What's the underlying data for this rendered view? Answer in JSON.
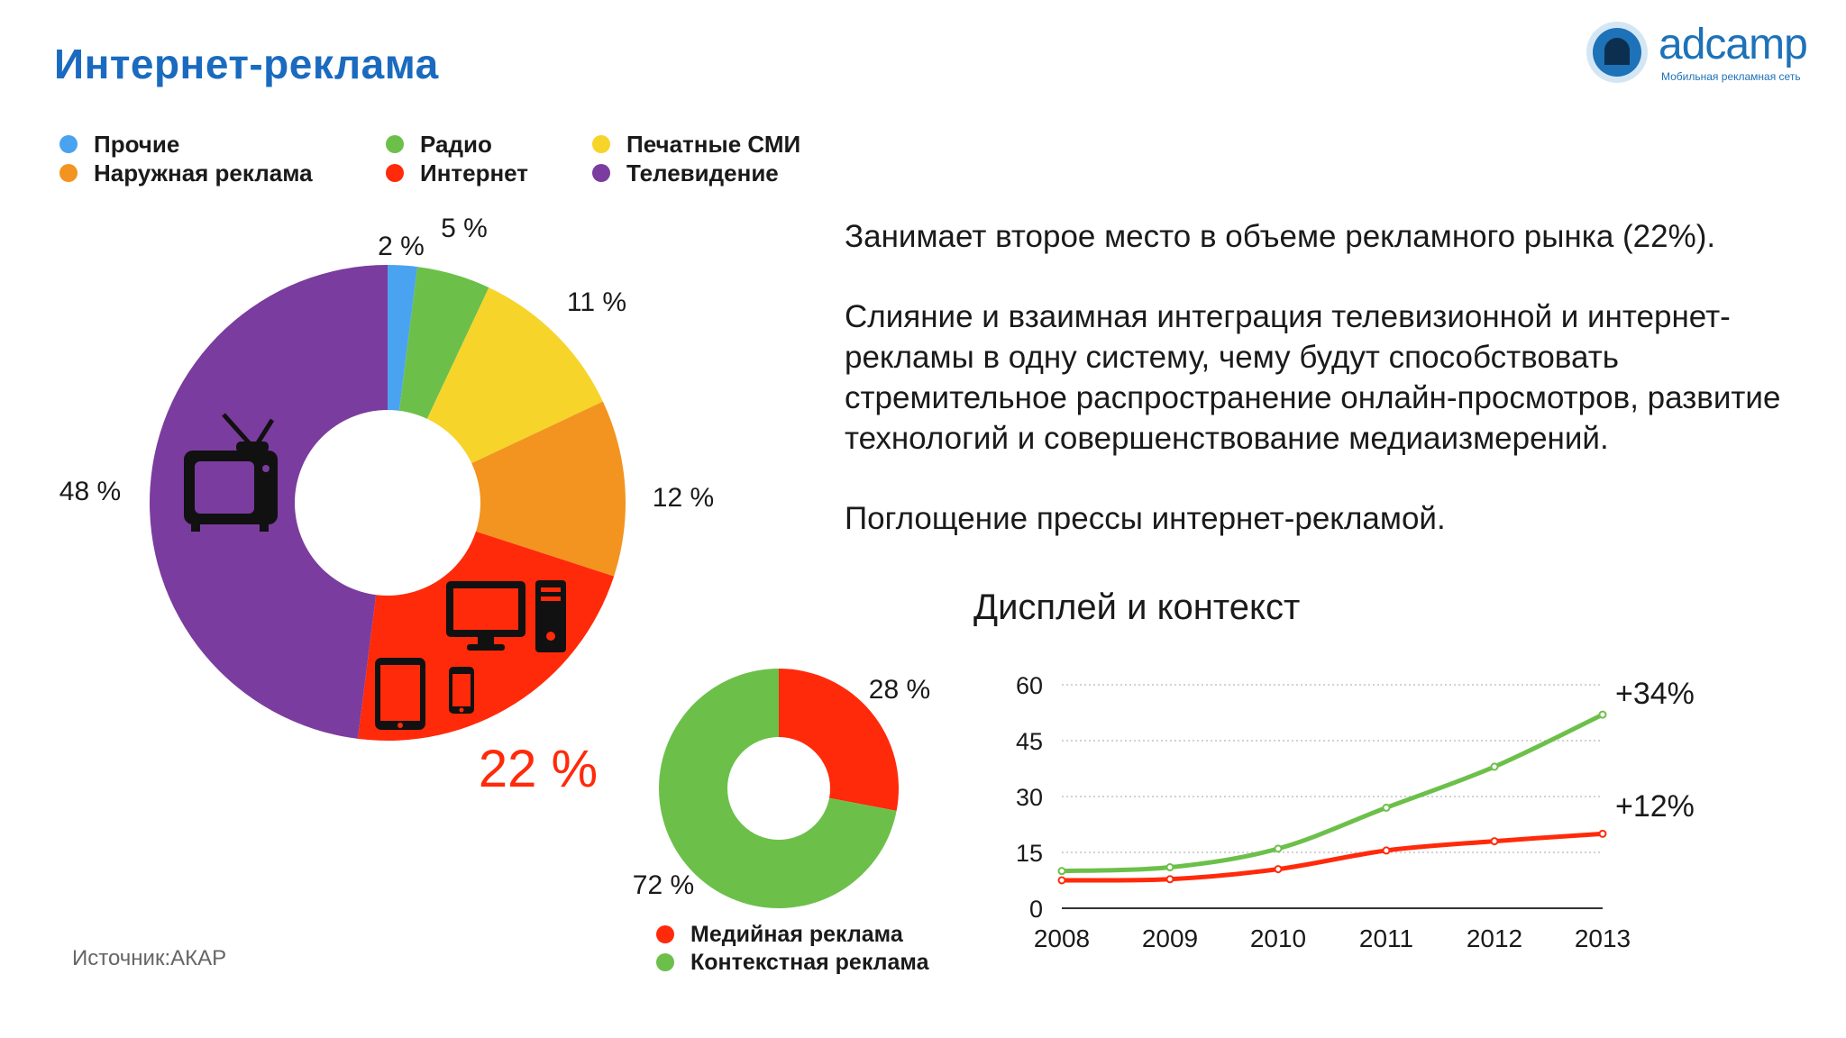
{
  "title": "Интернет-реклама",
  "logo": {
    "name": "adcamp",
    "tagline": "Мобильная рекламная сеть"
  },
  "legend": [
    {
      "label": "Прочие",
      "color": "#4aa3f0"
    },
    {
      "label": "Наружная реклама",
      "color": "#f2941f"
    },
    {
      "label": "Радио",
      "color": "#6cc04a"
    },
    {
      "label": "Интернет",
      "color": "#ff2a0a"
    },
    {
      "label": "Печатные СМИ",
      "color": "#f6d42a"
    },
    {
      "label": "Телевидение",
      "color": "#7a3c9e"
    }
  ],
  "paragraphs": [
    "Занимает второе место в объеме рекламного рынка (22%).",
    "Слияние и взаимная интеграция телевизионной и интернет-рекламы в одну систему, чему будут способствовать стремительное распространение онлайн-просмотров, развитие технологий и совершенствование медиаизмерений.",
    "Поглощение прессы интернет-рекламой."
  ],
  "source": "Источник:АКАР",
  "line_chart_title": "Дисплей и контекст",
  "small_legend": [
    {
      "label": "Медийная реклама",
      "color": "#ff2a0a"
    },
    {
      "label": "Контекстная реклама",
      "color": "#6cc04a"
    }
  ],
  "chart_data": [
    {
      "type": "pie",
      "variant": "donut",
      "categories": [
        "Прочие",
        "Радио",
        "Печатные СМИ",
        "Наружная реклама",
        "Интернет",
        "Телевидение"
      ],
      "values": [
        2,
        5,
        11,
        12,
        22,
        48
      ],
      "labels": [
        "2 %",
        "5 %",
        "11 %",
        "12 %",
        "22 %",
        "48 %"
      ],
      "colors": [
        "#4aa3f0",
        "#6cc04a",
        "#f6d42a",
        "#f2941f",
        "#ff2a0a",
        "#7a3c9e"
      ],
      "icons": [
        "tv-icon",
        "desktop-computer-icon",
        "tablet-icon",
        "smartphone-icon"
      ]
    },
    {
      "type": "pie",
      "variant": "donut",
      "categories": [
        "Медийная реклама",
        "Контекстная реклама"
      ],
      "values": [
        28,
        72
      ],
      "labels": [
        "28 %",
        "72 %"
      ],
      "colors": [
        "#ff2a0a",
        "#6cc04a"
      ]
    },
    {
      "type": "line",
      "title": "Дисплей и контекст",
      "x": [
        "2008",
        "2009",
        "2010",
        "2011",
        "2012",
        "2013"
      ],
      "ylim": [
        0,
        60
      ],
      "yticks": [
        0,
        15,
        30,
        45,
        60
      ],
      "grid": true,
      "series": [
        {
          "values": [
            10,
            11,
            16,
            27,
            38,
            52
          ],
          "color": "#6cc04a",
          "end_label": "+34%"
        },
        {
          "values": [
            7.5,
            7.8,
            10.5,
            15.5,
            18,
            20
          ],
          "color": "#ff2a0a",
          "end_label": "+12%"
        }
      ]
    }
  ]
}
